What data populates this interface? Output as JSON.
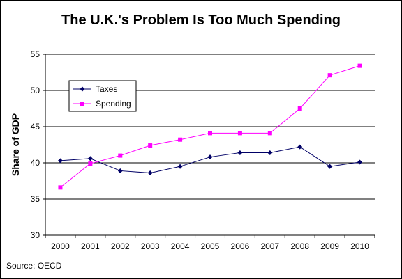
{
  "chart_data": {
    "type": "line",
    "title": "The U.K.'s Problem Is Too Much Spending",
    "xlabel": "",
    "ylabel": "Share of GDP",
    "x": [
      "2000",
      "2001",
      "2002",
      "2003",
      "2004",
      "2005",
      "2006",
      "2007",
      "2008",
      "2009",
      "2010"
    ],
    "ylim": [
      30,
      55
    ],
    "yticks": [
      "30",
      "35",
      "40",
      "45",
      "50",
      "55"
    ],
    "grid": "horizontal",
    "legend_position": "top-left",
    "series": [
      {
        "name": "Taxes",
        "color": "#000066",
        "marker": "diamond",
        "values": [
          40.3,
          40.6,
          38.9,
          38.6,
          39.5,
          40.8,
          41.4,
          41.4,
          42.2,
          39.5,
          40.1
        ]
      },
      {
        "name": "Spending",
        "color": "#ff00ff",
        "marker": "square",
        "values": [
          36.6,
          39.9,
          41.0,
          42.4,
          43.2,
          44.1,
          44.1,
          44.1,
          47.5,
          52.1,
          53.4
        ]
      }
    ]
  },
  "footer": {
    "source": "Source: OECD"
  }
}
